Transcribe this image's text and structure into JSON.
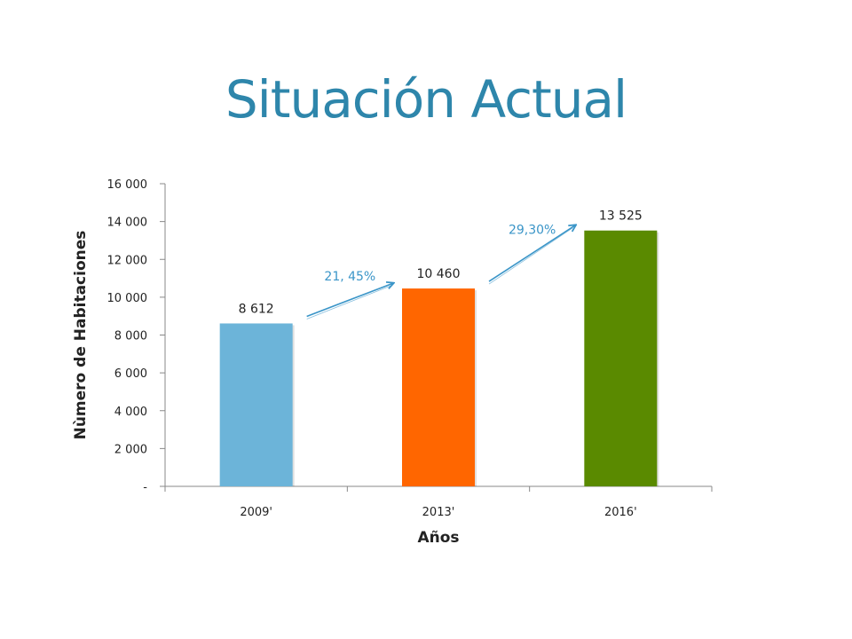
{
  "slide": {
    "title": "Situación Actual"
  },
  "chart_data": {
    "type": "bar",
    "title": "",
    "xlabel": "Años",
    "ylabel": "Nùmero de Habitaciones",
    "categories": [
      "2009'",
      "2013'",
      "2016'"
    ],
    "values": [
      8612,
      10460,
      13525
    ],
    "value_labels": [
      "8 612",
      "10 460",
      "13 525"
    ],
    "bar_colors": [
      "#6cb4d9",
      "#ff6600",
      "#5a8a00"
    ],
    "ylim": [
      0,
      16000
    ],
    "yticks": [
      0,
      2000,
      4000,
      6000,
      8000,
      10000,
      12000,
      14000,
      16000
    ],
    "ytick_labels": [
      "-",
      "2 000",
      "4 000",
      "6 000",
      "8 000",
      "10 000",
      "12 000",
      "14 000",
      "16 000"
    ],
    "grid": false,
    "legend": "none",
    "annotations": [
      {
        "text": "21, 45%",
        "from": "2009'",
        "to": "2013'"
      },
      {
        "text": "29,30%",
        "from": "2013'",
        "to": "2016'"
      }
    ],
    "annotation_color": "#3a95c8"
  }
}
